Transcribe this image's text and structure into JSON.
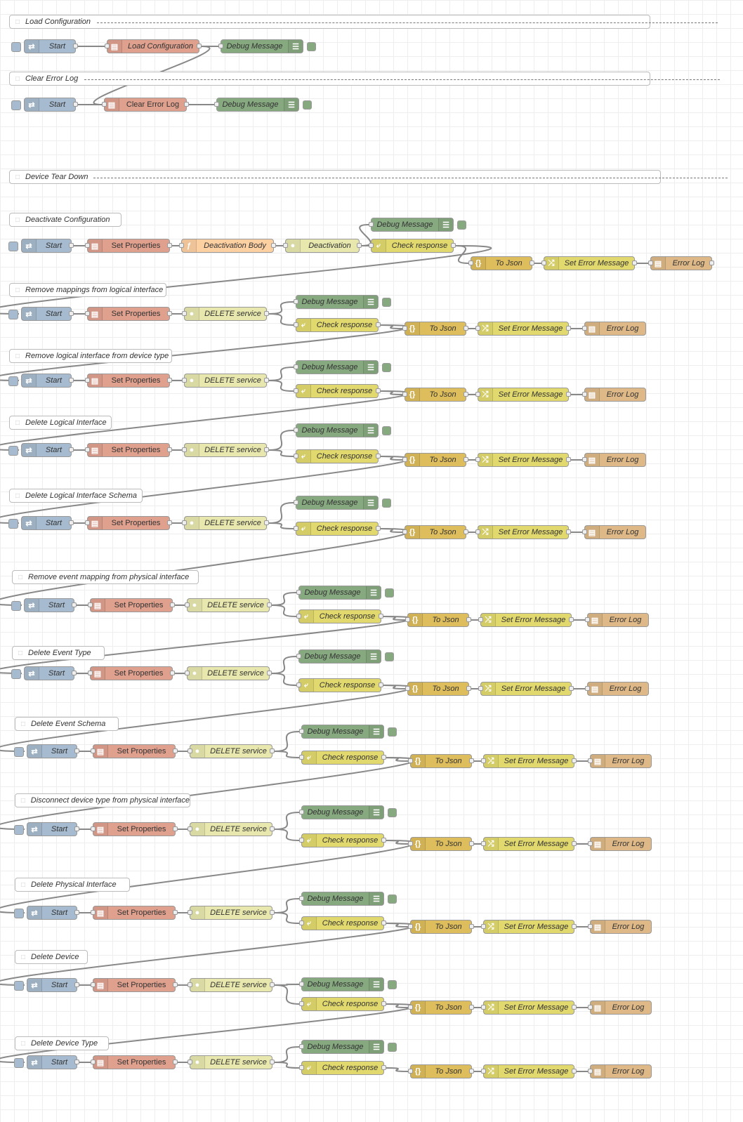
{
  "colors": {
    "inject": "#a6bbcf",
    "change": "#e2d96e",
    "function": "#fdd0a2",
    "http": "#e7e7ae",
    "switch": "#e2d96e",
    "json": "#debd5c",
    "debug": "#87a980",
    "file": "#deb887",
    "config": "#dfa08e",
    "wire": "#888888"
  },
  "icons": {
    "inject": "arrow-in-icon",
    "config": "template-icon",
    "function": "function-icon",
    "http": "globe-icon",
    "switch": "switch-icon",
    "json": "json-icon",
    "change": "shuffle-icon",
    "debug": "list-icon",
    "file": "file-icon"
  },
  "groups": {
    "load": {
      "comment": "Load Configuration",
      "start": "Start",
      "load": "Load Configuration",
      "debug": "Debug Message"
    },
    "clear": {
      "comment": "Clear Error Log",
      "start": "Start",
      "clear": "Clear Error Log",
      "debug": "Debug Message"
    },
    "teardown": {
      "comment": "Device Tear Down"
    }
  },
  "flows": [
    {
      "comment": "Deactivate Configuration",
      "start": "Start",
      "props": "Set Properties",
      "body": "Deactivation Body",
      "service": "Deactivation",
      "debug": "Debug Message",
      "check": "Check response",
      "json": "To Json",
      "err": "Set Error Message",
      "log": "Error Log"
    },
    {
      "comment": "Remove mappings from logical interface",
      "start": "Start",
      "props": "Set Properties",
      "service": "DELETE service",
      "debug": "Debug Message",
      "check": "Check response",
      "json": "To Json",
      "err": "Set Error Message",
      "log": "Error Log"
    },
    {
      "comment": "Remove logical interface from device type",
      "start": "Start",
      "props": "Set Properties",
      "service": "DELETE service",
      "debug": "Debug Message",
      "check": "Check response",
      "json": "To Json",
      "err": "Set Error Message",
      "log": "Error Log"
    },
    {
      "comment": "Delete Logical Interface",
      "start": "Start",
      "props": "Set Properties",
      "service": "DELETE service",
      "debug": "Debug Message",
      "check": "Check response",
      "json": "To Json",
      "err": "Set Error Message",
      "log": "Error Log"
    },
    {
      "comment": "Delete Logical Interface Schema",
      "start": "Start",
      "props": "Set Properties",
      "service": "DELETE service",
      "debug": "Debug Message",
      "check": "Check response",
      "json": "To Json",
      "err": "Set Error Message",
      "log": "Error Log"
    },
    {
      "comment": "Remove event mapping from physical interface",
      "start": "Start",
      "props": "Set Properties",
      "service": "DELETE service",
      "debug": "Debug Message",
      "check": "Check response",
      "json": "To Json",
      "err": "Set Error Message",
      "log": "Error Log"
    },
    {
      "comment": "Delete Event Type",
      "start": "Start",
      "props": "Set Properties",
      "service": "DELETE service",
      "debug": "Debug Message",
      "check": "Check response",
      "json": "To Json",
      "err": "Set Error Message",
      "log": "Error Log"
    },
    {
      "comment": "Delete Event Schema",
      "start": "Start",
      "props": "Set Properties",
      "service": "DELETE service",
      "debug": "Debug Message",
      "check": "Check response",
      "json": "To Json",
      "err": "Set Error Message",
      "log": "Error Log"
    },
    {
      "comment": "Disconnect device type from physical interface",
      "start": "Start",
      "props": "Set Properties",
      "service": "DELETE service",
      "debug": "Debug Message",
      "check": "Check response",
      "json": "To Json",
      "err": "Set Error Message",
      "log": "Error Log"
    },
    {
      "comment": "Delete Physical Interface",
      "start": "Start",
      "props": "Set Properties",
      "service": "DELETE service",
      "debug": "Debug Message",
      "check": "Check response",
      "json": "To Json",
      "err": "Set Error Message",
      "log": "Error Log"
    },
    {
      "comment": "Delete Device",
      "start": "Start",
      "props": "Set Properties",
      "service": "DELETE service",
      "debug": "Debug Message",
      "check": "Check response",
      "json": "To Json",
      "err": "Set Error Message",
      "log": "Error Log"
    },
    {
      "comment": "Delete Device Type",
      "start": "Start",
      "props": "Set Properties",
      "service": "DELETE service",
      "debug": "Debug Message",
      "check": "Check response",
      "json": "To Json",
      "err": "Set Error Message",
      "log": "Error Log"
    }
  ]
}
